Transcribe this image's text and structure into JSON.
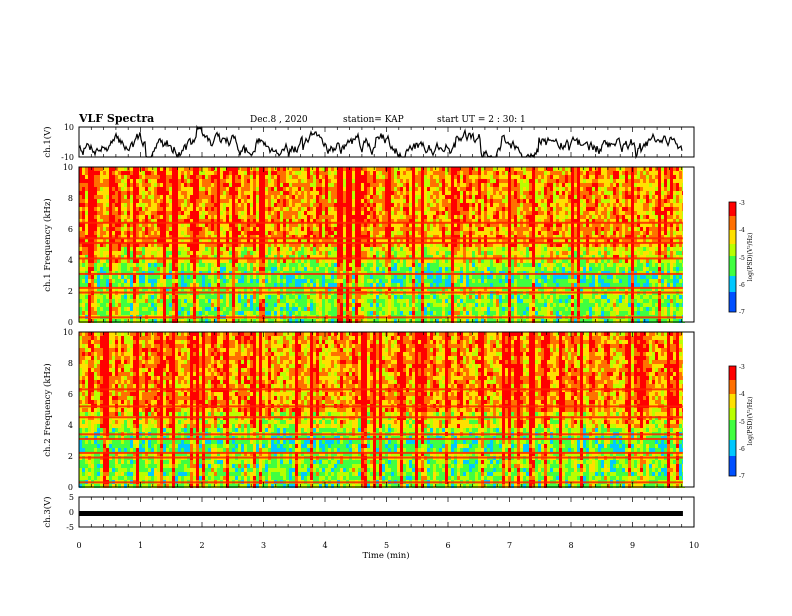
{
  "header": {
    "title": "VLF Spectra",
    "date": "Dec.8 , 2020",
    "station": "station= KAP",
    "start": "start UT = 2 : 30: 1"
  },
  "chart_data": [
    {
      "type": "line",
      "panel": "ch1-waveform",
      "ylabel": "ch.1(V)",
      "ylim": [
        -10,
        10
      ],
      "yticks": [
        "10",
        "-10"
      ],
      "xlim": [
        0,
        10
      ],
      "x_extent": 9.82,
      "series_color": "#000000"
    },
    {
      "type": "heatmap",
      "panel": "ch1-spectrogram",
      "ylabel": "ch.1 Frequency (kHz)",
      "ylim": [
        0,
        10
      ],
      "yticks": [
        "0",
        "2",
        "4",
        "6",
        "8",
        "10"
      ],
      "xlim": [
        0,
        10
      ],
      "x_extent": 9.82,
      "colorbar": {
        "label": "log(PSD)(V²/Hz)",
        "range": [
          -7,
          -3
        ],
        "ticks": [
          "-3",
          "-4",
          "-5",
          "-6",
          "-7"
        ]
      },
      "bands_khz": [
        0.3,
        1.9,
        2.2,
        3.1,
        4.1,
        5.1,
        5.4,
        6.4
      ]
    },
    {
      "type": "heatmap",
      "panel": "ch2-spectrogram",
      "ylabel": "ch.2 Frequency (kHz)",
      "ylim": [
        0,
        10
      ],
      "yticks": [
        "0",
        "2",
        "4",
        "6",
        "8",
        "10"
      ],
      "xlim": [
        0,
        10
      ],
      "x_extent": 9.82,
      "colorbar": {
        "label": "log(PSD)(V²/Hz)",
        "range": [
          -7,
          -3
        ],
        "ticks": [
          "-3",
          "-4",
          "-5",
          "-6",
          "-7"
        ]
      },
      "bands_khz": [
        0.3,
        1.9,
        2.2,
        3.1,
        3.4,
        4.5,
        5.2,
        6.3
      ]
    },
    {
      "type": "line",
      "panel": "ch3-waveform",
      "ylabel": "ch.3(V)",
      "ylim": [
        -5,
        5
      ],
      "yticks": [
        "5",
        "0",
        "-5"
      ],
      "xlim": [
        0,
        10
      ],
      "xticks": [
        "0",
        "1",
        "2",
        "3",
        "4",
        "5",
        "6",
        "7",
        "8",
        "9",
        "10"
      ],
      "xlabel": "Time (min)",
      "level": -0.5,
      "x_extent": 9.82,
      "series_color": "#000000"
    }
  ]
}
